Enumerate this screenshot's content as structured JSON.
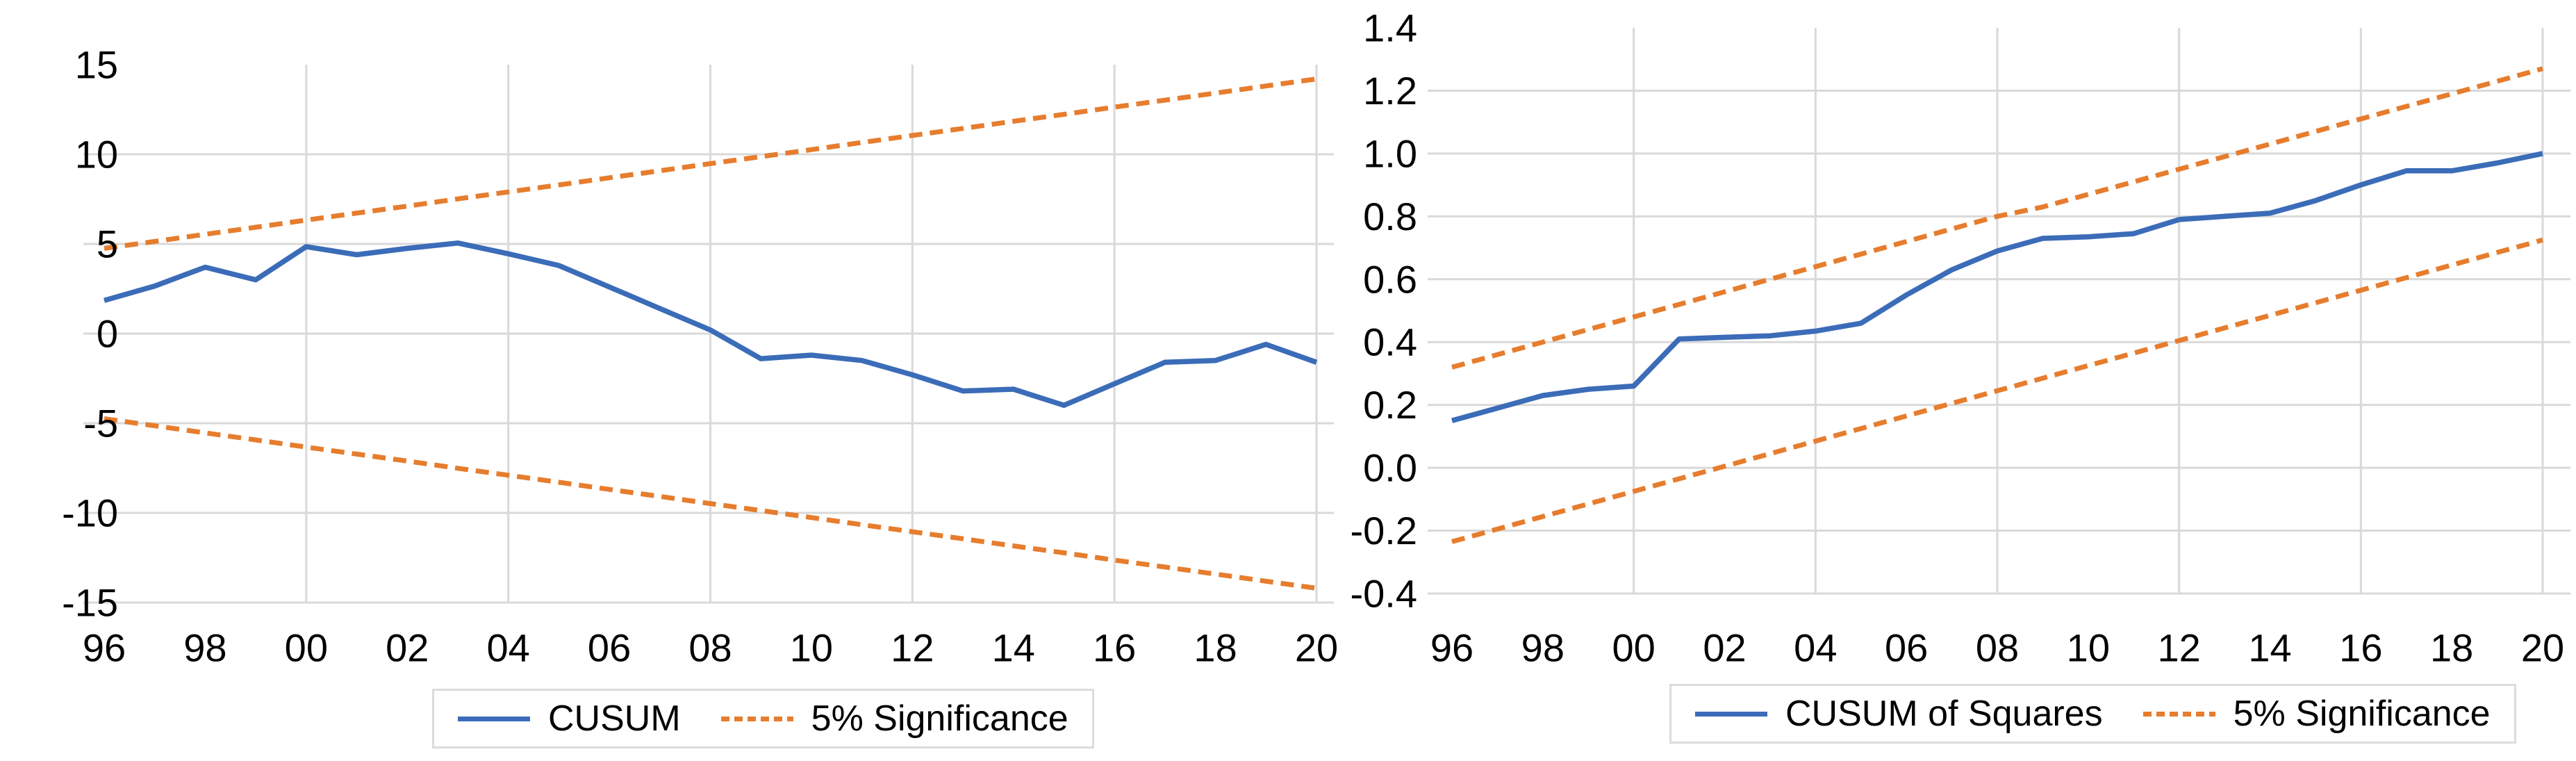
{
  "colors": {
    "series_blue": "#3B6CB8",
    "series_orange": "#E67D2E",
    "gridline": "#D9D9D9",
    "text": "#000000",
    "legend_border": "#DCDCDC",
    "background": "#FFFFFF"
  },
  "chart_data": [
    {
      "type": "line",
      "title": "",
      "xlabel": "",
      "ylabel": "",
      "grid": true,
      "legend_position": "bottom",
      "ylim": [
        -15,
        15
      ],
      "x": [
        1996,
        1997,
        1998,
        1999,
        2000,
        2001,
        2002,
        2003,
        2004,
        2005,
        2006,
        2007,
        2008,
        2009,
        2010,
        2011,
        2012,
        2013,
        2014,
        2015,
        2016,
        2017,
        2018,
        2019,
        2020
      ],
      "x_tick_labels": [
        "96",
        "98",
        "00",
        "02",
        "04",
        "06",
        "08",
        "10",
        "12",
        "14",
        "16",
        "18",
        "20"
      ],
      "y_tick_labels": [
        "15",
        "10",
        "5",
        "0",
        "-5",
        "-10",
        "-15"
      ],
      "series": [
        {
          "name": "CUSUM",
          "style": "solid",
          "color": "#3B6CB8",
          "values": [
            1.85,
            2.65,
            3.7,
            3.0,
            4.85,
            4.4,
            4.75,
            5.05,
            4.45,
            3.8,
            2.6,
            1.4,
            0.2,
            -1.4,
            -1.2,
            -1.5,
            -2.3,
            -3.2,
            -3.1,
            -4.0,
            -2.8,
            -1.6,
            -1.5,
            -0.6,
            -1.6
          ]
        },
        {
          "name": "5% Significance (upper)",
          "style": "dashed",
          "color": "#E67D2E",
          "values": [
            4.75,
            5.14,
            5.54,
            5.93,
            6.33,
            6.72,
            7.11,
            7.51,
            7.9,
            8.29,
            8.69,
            9.08,
            9.48,
            9.87,
            10.26,
            10.66,
            11.05,
            11.44,
            11.84,
            12.23,
            12.63,
            13.02,
            13.41,
            13.81,
            14.2
          ]
        },
        {
          "name": "5% Significance (lower)",
          "style": "dashed",
          "color": "#E67D2E",
          "values": [
            -4.75,
            -5.14,
            -5.54,
            -5.93,
            -6.33,
            -6.72,
            -7.11,
            -7.51,
            -7.9,
            -8.29,
            -8.69,
            -9.08,
            -9.48,
            -9.87,
            -10.26,
            -10.66,
            -11.05,
            -11.44,
            -11.84,
            -12.23,
            -12.63,
            -13.02,
            -13.41,
            -13.81,
            -14.2
          ]
        }
      ],
      "legend": [
        {
          "label": "CUSUM",
          "style": "solid"
        },
        {
          "label": "5% Significance",
          "style": "dashed"
        }
      ]
    },
    {
      "type": "line",
      "title": "",
      "xlabel": "",
      "ylabel": "",
      "grid": true,
      "legend_position": "bottom",
      "ylim": [
        -0.4,
        1.4
      ],
      "x": [
        1996,
        1997,
        1998,
        1999,
        2000,
        2001,
        2002,
        2003,
        2004,
        2005,
        2006,
        2007,
        2008,
        2009,
        2010,
        2011,
        2012,
        2013,
        2014,
        2015,
        2016,
        2017,
        2018,
        2019,
        2020
      ],
      "x_tick_labels": [
        "96",
        "98",
        "00",
        "02",
        "04",
        "06",
        "08",
        "10",
        "12",
        "14",
        "16",
        "18",
        "20"
      ],
      "y_tick_labels": [
        "1.4",
        "1.2",
        "1.0",
        "0.8",
        "0.6",
        "0.4",
        "0.2",
        "0.0",
        "-0.2",
        "-0.4"
      ],
      "series": [
        {
          "name": "CUSUM of Squares",
          "style": "solid",
          "color": "#3B6CB8",
          "values": [
            0.15,
            0.19,
            0.23,
            0.25,
            0.26,
            0.41,
            0.415,
            0.42,
            0.435,
            0.46,
            0.55,
            0.63,
            0.69,
            0.73,
            0.735,
            0.745,
            0.79,
            0.8,
            0.81,
            0.85,
            0.9,
            0.945,
            0.945,
            0.97,
            1.0
          ]
        },
        {
          "name": "5% Significance (upper)",
          "style": "dashed",
          "color": "#E67D2E",
          "values": [
            0.32,
            0.36,
            0.4,
            0.44,
            0.48,
            0.52,
            0.56,
            0.6,
            0.64,
            0.68,
            0.72,
            0.76,
            0.8,
            0.83,
            0.87,
            0.91,
            0.95,
            0.99,
            1.03,
            1.07,
            1.11,
            1.15,
            1.19,
            1.23,
            1.27
          ]
        },
        {
          "name": "5% Significance (lower)",
          "style": "dashed",
          "color": "#E67D2E",
          "values": [
            -0.235,
            -0.195,
            -0.155,
            -0.115,
            -0.075,
            -0.035,
            0.005,
            0.045,
            0.085,
            0.125,
            0.165,
            0.205,
            0.245,
            0.285,
            0.325,
            0.365,
            0.405,
            0.445,
            0.485,
            0.525,
            0.565,
            0.605,
            0.645,
            0.685,
            0.725
          ]
        }
      ],
      "legend": [
        {
          "label": "CUSUM of Squares",
          "style": "solid"
        },
        {
          "label": "5% Significance",
          "style": "dashed"
        }
      ]
    }
  ]
}
